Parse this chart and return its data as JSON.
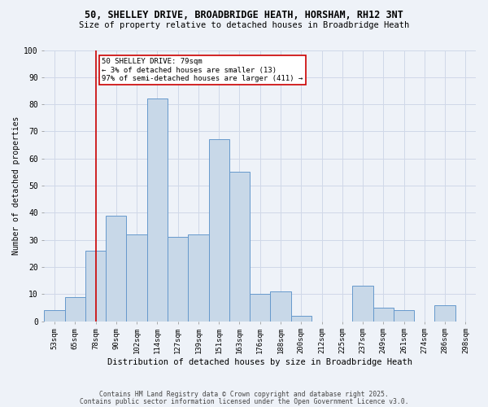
{
  "title1": "50, SHELLEY DRIVE, BROADBRIDGE HEATH, HORSHAM, RH12 3NT",
  "title2": "Size of property relative to detached houses in Broadbridge Heath",
  "xlabel": "Distribution of detached houses by size in Broadbridge Heath",
  "ylabel": "Number of detached properties",
  "bin_labels": [
    "53sqm",
    "65sqm",
    "78sqm",
    "90sqm",
    "102sqm",
    "114sqm",
    "127sqm",
    "139sqm",
    "151sqm",
    "163sqm",
    "176sqm",
    "188sqm",
    "200sqm",
    "212sqm",
    "225sqm",
    "237sqm",
    "249sqm",
    "261sqm",
    "274sqm",
    "286sqm",
    "298sqm"
  ],
  "bar_heights": [
    4,
    9,
    26,
    39,
    32,
    82,
    31,
    32,
    67,
    55,
    10,
    11,
    2,
    0,
    0,
    13,
    5,
    4,
    0,
    6,
    0
  ],
  "bar_color": "#c8d8e8",
  "bar_edge_color": "#6699cc",
  "vline_x": 2,
  "vline_color": "#cc0000",
  "annotation_text": "50 SHELLEY DRIVE: 79sqm\n← 3% of detached houses are smaller (13)\n97% of semi-detached houses are larger (411) →",
  "annotation_box_color": "#ffffff",
  "annotation_box_edge_color": "#cc0000",
  "ylim": [
    0,
    100
  ],
  "yticks": [
    0,
    10,
    20,
    30,
    40,
    50,
    60,
    70,
    80,
    90,
    100
  ],
  "grid_color": "#d0d8e8",
  "background_color": "#eef2f8",
  "footer1": "Contains HM Land Registry data © Crown copyright and database right 2025.",
  "footer2": "Contains public sector information licensed under the Open Government Licence v3.0."
}
